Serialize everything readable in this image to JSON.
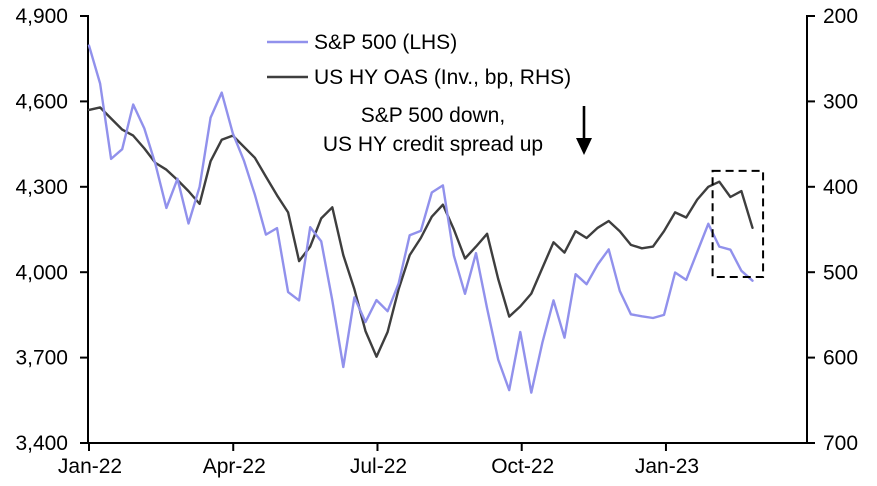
{
  "chart_data": {
    "type": "line",
    "title": "",
    "x_unit": "weeks since start of Jan-22, plotted at 0.23 months per week",
    "week_to_month": 0.23,
    "x_ticks": [
      "Jan-22",
      "Apr-22",
      "Jul-22",
      "Oct-22",
      "Jan-23"
    ],
    "x_tick_months": [
      0,
      3,
      6,
      9,
      12
    ],
    "left_axis": {
      "side": "LHS",
      "labels": [
        "4,900",
        "4,600",
        "4,300",
        "4,000",
        "3,700",
        "3,400"
      ],
      "tick_values": [
        4900,
        4600,
        4300,
        4000,
        3700,
        3400
      ],
      "min": 3400,
      "max": 4900,
      "inverted": false
    },
    "right_axis": {
      "side": "RHS",
      "labels": [
        "200",
        "300",
        "400",
        "500",
        "600",
        "700"
      ],
      "tick_values": [
        200,
        300,
        400,
        500,
        600,
        700
      ],
      "min": 200,
      "max": 700,
      "inverted": true
    },
    "grid": false,
    "legend_position": "top-center",
    "series": [
      {
        "name": "US HY OAS (Inv., bp, RHS)",
        "axis": "right",
        "color": "#3E3E3E",
        "values": [
          310,
          307,
          320,
          333,
          340,
          355,
          372,
          380,
          392,
          405,
          420,
          370,
          345,
          340,
          353,
          366,
          388,
          410,
          430,
          487,
          470,
          437,
          424,
          480,
          520,
          569,
          599,
          570,
          520,
          480,
          460,
          435,
          421,
          450,
          484,
          470,
          455,
          508,
          552,
          540,
          525,
          495,
          465,
          477,
          452,
          460,
          448,
          440,
          452,
          468,
          472,
          470,
          452,
          430,
          436,
          415,
          400,
          394,
          412,
          405,
          448
        ]
      },
      {
        "name": "S&P 500 (LHS)",
        "axis": "left",
        "color": "#9191EC",
        "values": [
          4796,
          4663,
          4398,
          4432,
          4589,
          4505,
          4380,
          4226,
          4328,
          4171,
          4300,
          4543,
          4631,
          4488,
          4393,
          4272,
          4132,
          4155,
          3930,
          3901,
          4158,
          4109,
          3901,
          3667,
          3912,
          3825,
          3902,
          3863,
          3960,
          4130,
          4145,
          4280,
          4305,
          4058,
          3924,
          4067,
          3873,
          3693,
          3586,
          3790,
          3577,
          3753,
          3901,
          3770,
          3993,
          3958,
          4027,
          4080,
          3934,
          3852,
          3845,
          3839,
          3850,
          3999,
          3973,
          4071,
          4170,
          4090,
          4079,
          4005,
          3970
        ]
      }
    ],
    "legend_order": [
      "S&P 500 (LHS)",
      "US HY OAS (Inv., bp, RHS)"
    ],
    "annotation": {
      "line1": "S&P 500 down,",
      "line2": "US HY credit spread up",
      "arrow": "down-arrow"
    },
    "highlight_box": {
      "start_month": 12.97,
      "end_month": 14.02,
      "top_value_lhs": 4356,
      "bottom_value_lhs": 3983,
      "style": "dashed"
    },
    "colors": {
      "axis": "#000000",
      "sp500_line": "#9191EC",
      "oas_line": "#3E3E3E",
      "background": "#FFFFFF"
    }
  }
}
